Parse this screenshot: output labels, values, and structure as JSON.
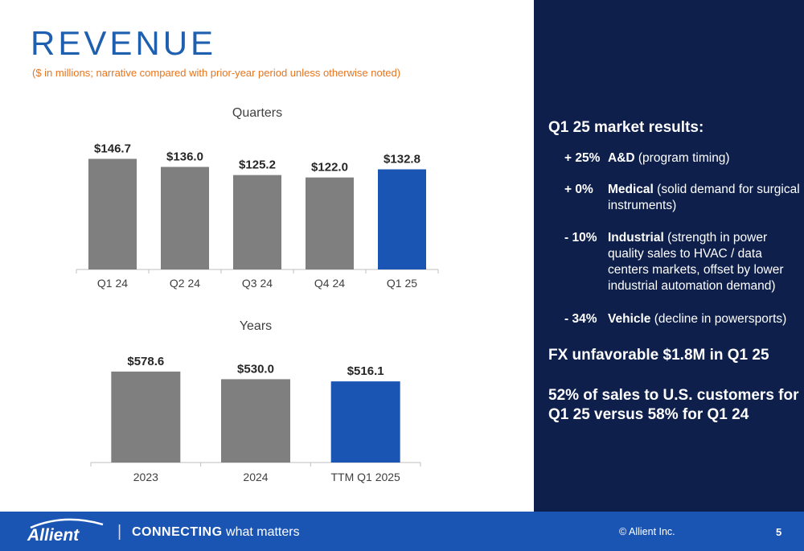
{
  "header": {
    "title": "REVENUE",
    "subtitle": "($ in millions; narrative compared with prior-year period unless otherwise noted)"
  },
  "chart_data": [
    {
      "type": "bar",
      "title": "Quarters",
      "categories": [
        "Q1 24",
        "Q2 24",
        "Q3 24",
        "Q4 24",
        "Q1 25"
      ],
      "values": [
        146.7,
        136.0,
        125.2,
        122.0,
        132.8
      ],
      "data_labels": [
        "$146.7",
        "$136.0",
        "$125.2",
        "$122.0",
        "$132.8"
      ],
      "colors": [
        "#7f7f7f",
        "#7f7f7f",
        "#7f7f7f",
        "#7f7f7f",
        "#1a55b4"
      ],
      "ylim": [
        0,
        160
      ],
      "grid": false,
      "xlabel": "",
      "ylabel": ""
    },
    {
      "type": "bar",
      "title": "Years",
      "categories": [
        "2023",
        "2024",
        "TTM Q1 2025"
      ],
      "values": [
        578.6,
        530.0,
        516.1
      ],
      "data_labels": [
        "$578.6",
        "$530.0",
        "$516.1"
      ],
      "colors": [
        "#7f7f7f",
        "#7f7f7f",
        "#1a55b4"
      ],
      "ylim": [
        0,
        660
      ],
      "grid": false,
      "xlabel": "",
      "ylabel": ""
    }
  ],
  "market_results": {
    "heading": "Q1 25 market results:",
    "items": [
      {
        "pct": "+ 25%",
        "segment": "A&D",
        "note": " (program timing)"
      },
      {
        "pct": "+ 0%",
        "segment": "Medical",
        "note": " (solid demand for surgical instruments)"
      },
      {
        "pct": "- 10%",
        "segment": "Industrial",
        "note": " (strength in power quality sales to HVAC / data centers markets, offset by lower industrial automation demand)"
      },
      {
        "pct": "- 34%",
        "segment": "Vehicle",
        "note": " (decline in powersports)"
      }
    ],
    "fx": "FX unfavorable $1.8M in Q1 25",
    "sales": "52% of sales to U.S. customers for Q1 25 versus 58% for Q1 24"
  },
  "footer": {
    "logo": "Allient",
    "separator": "|",
    "tagline_strong": "CONNECTING",
    "tagline_rest": " what matters",
    "copyright": "© Allient Inc.",
    "page_number": "5"
  },
  "colors": {
    "title": "#1f5fb0",
    "subtitle": "#e8741e",
    "panel": "#0d1f4a",
    "footer": "#1a55b4",
    "bar_gray": "#7f7f7f",
    "bar_blue": "#1a55b4"
  }
}
